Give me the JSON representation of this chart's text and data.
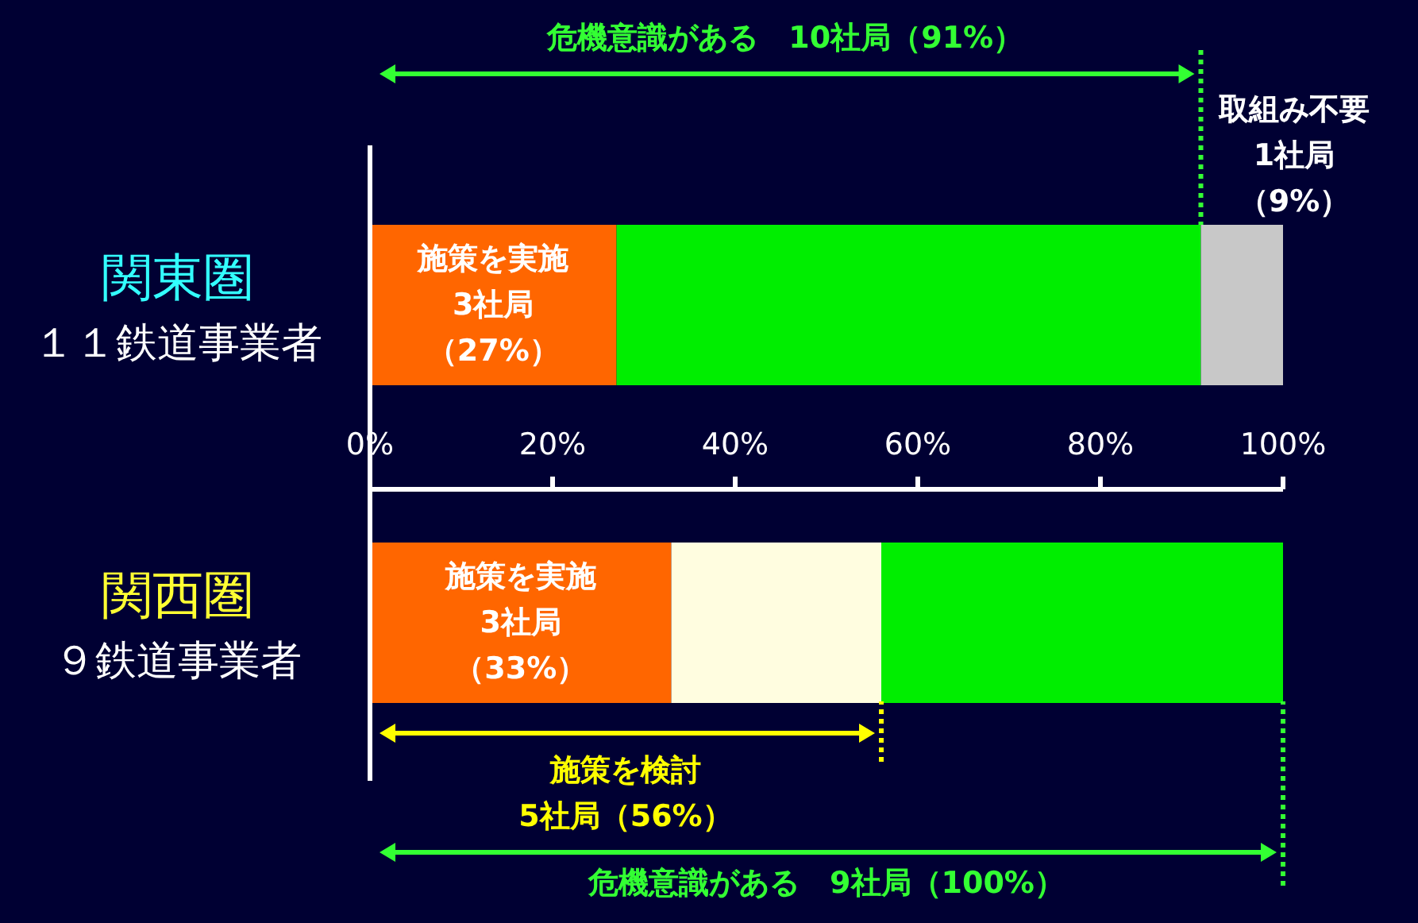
{
  "chart_data": {
    "type": "bar",
    "orientation": "horizontal",
    "stacked": true,
    "categories": [
      "関東圏",
      "関西圏"
    ],
    "series": [
      {
        "color": "#ff6600",
        "values": [
          27,
          33
        ]
      },
      {
        "color": "#fffde0",
        "values": [
          null,
          23
        ]
      },
      {
        "color": "#00ee00",
        "values": [
          64,
          44
        ]
      },
      {
        "color": "#c8c8c8",
        "values": [
          9,
          null
        ]
      }
    ],
    "xlim": [
      0,
      100
    ],
    "xticks": [
      {
        "value": 0,
        "label": "0%"
      },
      {
        "value": 20,
        "label": "20%"
      },
      {
        "value": 40,
        "label": "40%"
      },
      {
        "value": 60,
        "label": "60%"
      },
      {
        "value": 80,
        "label": "80%"
      },
      {
        "value": 100,
        "label": "100%"
      }
    ],
    "grid": false,
    "legend": false,
    "annotations": [
      {
        "text": "施策を実施3社局（27%）",
        "x": 27,
        "y": "関東圏"
      },
      "危機意識がある　10社局（91%）",
      {
        "text": "取組み不要1社局（9%）",
        "x": 100,
        "y": "関東圏"
      },
      "１１鉄道事業者",
      {
        "text": "施策を実施3社局（33%）",
        "x": 33,
        "y": "関西圏"
      },
      "施策を検討",
      "5社局（56%）",
      "危機意識がある　9社局（100%）",
      "９鉄道事業者"
    ]
  }
}
